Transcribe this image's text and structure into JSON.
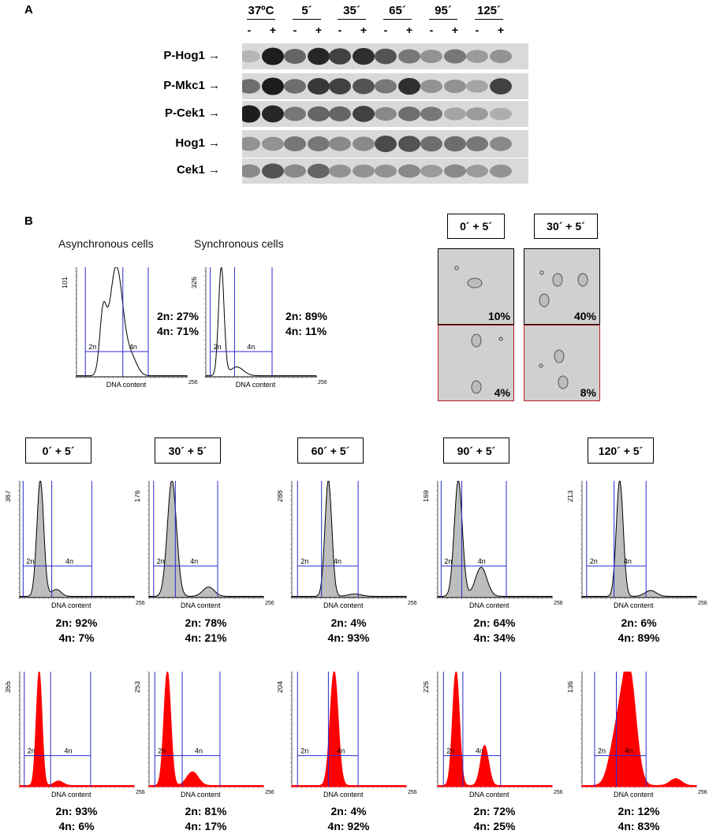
{
  "panel_a": {
    "letter": "A",
    "timepoints": [
      "37ºC",
      "5´",
      "35´",
      "65´",
      "95´",
      "125´"
    ],
    "signs": [
      "-",
      "+"
    ],
    "proteins": [
      "P-Hog1",
      "P-Mkc1",
      "P-Cek1",
      "Hog1",
      "Cek1"
    ]
  },
  "panel_b": {
    "letter": "B",
    "async": {
      "title": "Asynchronous cells",
      "ymax": "101",
      "xmax": "256",
      "xlabel": "DNA content",
      "stat_2n": "2n: 27%",
      "stat_4n": "4n: 71%"
    },
    "sync": {
      "title": "Synchronous cells",
      "ymax": "326",
      "xmax": "256",
      "xlabel": "DNA content",
      "stat_2n": "2n: 89%",
      "stat_4n": "4n: 11%"
    },
    "gate_2n": "2n",
    "gate_4n": "4n",
    "micro": {
      "labels": [
        "0´ + 5´",
        "30´ + 5´"
      ],
      "top_pct": [
        "10%",
        "40%"
      ],
      "bottom_pct": [
        "4%",
        "8%"
      ]
    },
    "timecourse_labels": [
      "0´ + 5´",
      "30´ + 5´",
      "60´ + 5´",
      "90´ + 5´",
      "120´ + 5´"
    ],
    "row_gray": [
      {
        "ymax": "367",
        "stat_2n": "2n: 92%",
        "stat_4n": "4n: 7%"
      },
      {
        "ymax": "176",
        "stat_2n": "2n: 78%",
        "stat_4n": "4n: 21%"
      },
      {
        "ymax": "288",
        "stat_2n": "2n: 4%",
        "stat_4n": "4n: 93%"
      },
      {
        "ymax": "169",
        "stat_2n": "2n: 64%",
        "stat_4n": "4n: 34%"
      },
      {
        "ymax": "213",
        "stat_2n": "2n: 6%",
        "stat_4n": "4n: 89%"
      }
    ],
    "row_red": [
      {
        "ymax": "355",
        "stat_2n": "2n: 93%",
        "stat_4n": "4n: 6%"
      },
      {
        "ymax": "253",
        "stat_2n": "2n: 81%",
        "stat_4n": "4n: 17%"
      },
      {
        "ymax": "204",
        "stat_2n": "2n: 4%",
        "stat_4n": "4n: 92%"
      },
      {
        "ymax": "226",
        "stat_2n": "2n: 72%",
        "stat_4n": "4n: 25%"
      },
      {
        "ymax": "136",
        "stat_2n": "2n: 12%",
        "stat_4n": "4n: 83%"
      }
    ],
    "xlabel": "DNA content",
    "xmax": "256"
  },
  "colors": {
    "gate": "#2a2ad0",
    "gray_fill": "#bdbdbd",
    "red_fill": "#ff0000",
    "micro_border_red": "#c0202a"
  }
}
